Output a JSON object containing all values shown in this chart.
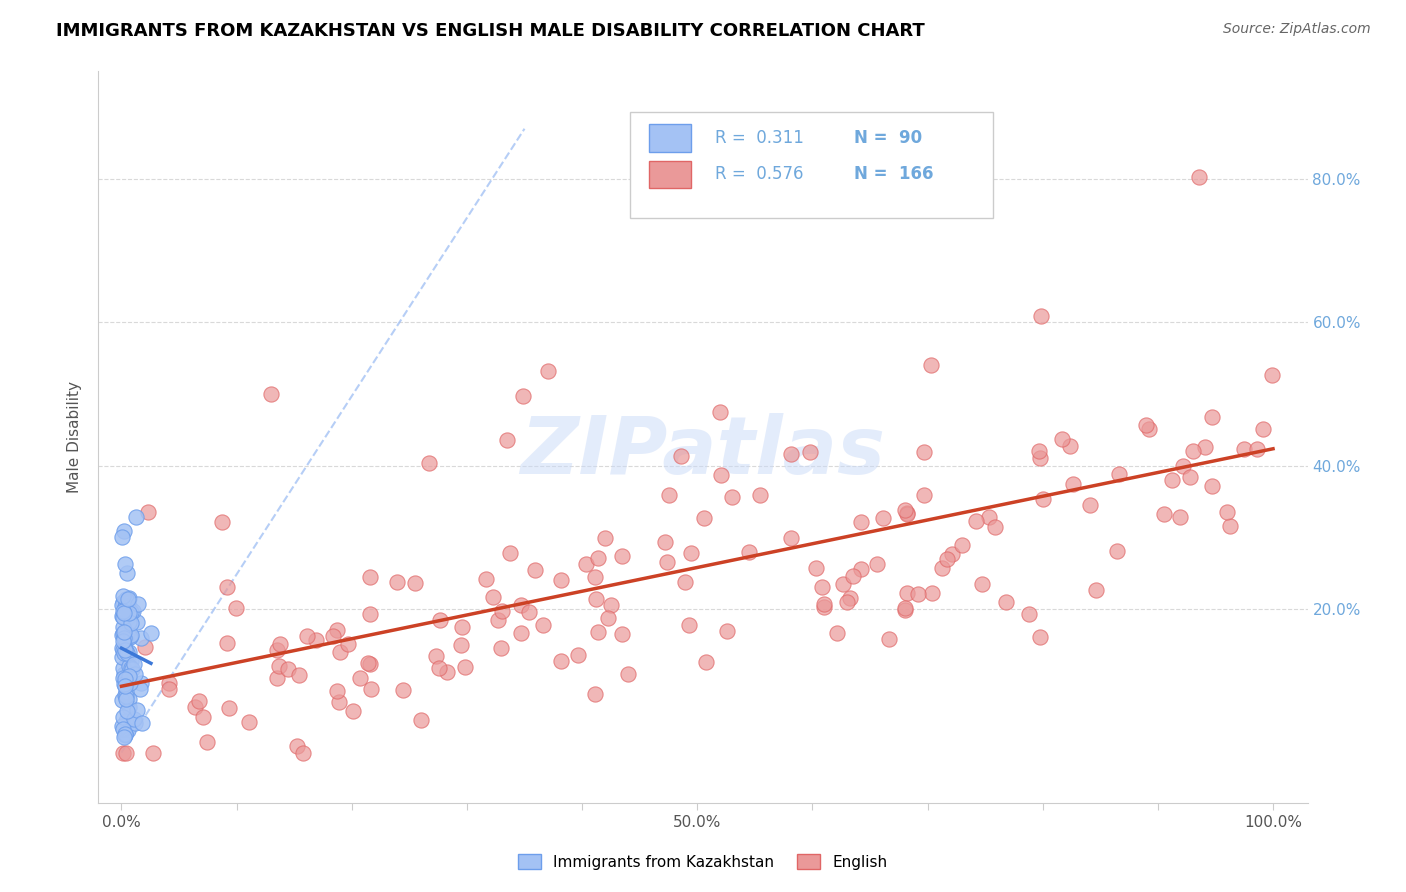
{
  "title": "IMMIGRANTS FROM KAZAKHSTAN VS ENGLISH MALE DISABILITY CORRELATION CHART",
  "source_text": "Source: ZipAtlas.com",
  "ylabel": "Male Disability",
  "watermark": "ZIPatlas",
  "legend_blue_R": "0.311",
  "legend_blue_N": "90",
  "legend_pink_R": "0.576",
  "legend_pink_N": "166",
  "blue_color": "#a4c2f4",
  "blue_edge_color": "#6d9eeb",
  "pink_color": "#ea9999",
  "pink_edge_color": "#e06666",
  "trend_blue_color": "#3c78d8",
  "trend_pink_color": "#cc4125",
  "diag_color": "#a4c2f4",
  "yaxis_label_color": "#6fa8dc",
  "title_color": "#000000",
  "source_color": "#666666",
  "grid_color": "#d9d9d9",
  "spine_color": "#cccccc",
  "legend_border_color": "#cccccc"
}
